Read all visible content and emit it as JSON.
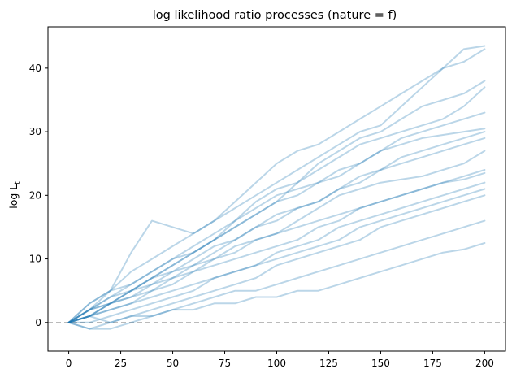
{
  "chart_data": {
    "type": "line",
    "title": "log likelihood ratio processes (nature = f)",
    "xlabel": "",
    "ylabel": "log L",
    "ylabel_subscript": "t",
    "xlim": [
      -10,
      210
    ],
    "ylim": [
      -4.5,
      46.5
    ],
    "xticks": [
      0,
      25,
      50,
      75,
      100,
      125,
      150,
      175,
      200
    ],
    "yticks": [
      0,
      10,
      20,
      30,
      40
    ],
    "grid": false,
    "line_color": "#1f77b4",
    "line_alpha": 0.3,
    "reference_line": {
      "y": 0,
      "style": "dashed",
      "color": "#b0b0b0"
    },
    "series": [
      {
        "x": [
          0,
          10,
          20,
          30,
          40,
          50,
          60,
          70,
          80,
          90,
          100,
          110,
          120,
          130,
          140,
          150,
          160,
          170,
          180,
          190,
          200
        ],
        "values": [
          0,
          3,
          5,
          11,
          16,
          15,
          14,
          16,
          18,
          20,
          22,
          24,
          26,
          28,
          30,
          31,
          34,
          37,
          40,
          43,
          43.5
        ]
      },
      {
        "x": [
          0,
          10,
          20,
          30,
          40,
          50,
          60,
          70,
          80,
          90,
          100,
          110,
          120,
          130,
          140,
          150,
          160,
          170,
          180,
          190,
          200
        ],
        "values": [
          0,
          2,
          5,
          8,
          10,
          12,
          14,
          16,
          19,
          22,
          25,
          27,
          28,
          30,
          32,
          34,
          36,
          38,
          40,
          41,
          43
        ]
      },
      {
        "x": [
          0,
          10,
          20,
          30,
          40,
          50,
          60,
          70,
          80,
          90,
          100,
          110,
          120,
          130,
          140,
          150,
          160,
          170,
          180,
          190,
          200
        ],
        "values": [
          0,
          2,
          4,
          6,
          8,
          10,
          11,
          13,
          16,
          19,
          21,
          22,
          25,
          27,
          29,
          30,
          32,
          34,
          35,
          36,
          38
        ]
      },
      {
        "x": [
          0,
          10,
          20,
          30,
          40,
          50,
          60,
          70,
          80,
          90,
          100,
          110,
          120,
          130,
          140,
          150,
          160,
          170,
          180,
          190,
          200
        ],
        "values": [
          0,
          1,
          3,
          5,
          7,
          9,
          11,
          13,
          15,
          17,
          19,
          22,
          24,
          26,
          28,
          29,
          30,
          31,
          32,
          34,
          37
        ]
      },
      {
        "x": [
          0,
          10,
          20,
          30,
          40,
          50,
          60,
          70,
          80,
          90,
          100,
          110,
          120,
          130,
          140,
          150,
          160,
          170,
          180,
          190,
          200
        ],
        "values": [
          0,
          3,
          5,
          6,
          8,
          10,
          12,
          14,
          16,
          18,
          20,
          21,
          22,
          24,
          25,
          27,
          29,
          30,
          31,
          32,
          33
        ]
      },
      {
        "x": [
          0,
          10,
          20,
          30,
          40,
          50,
          60,
          70,
          80,
          90,
          100,
          110,
          120,
          130,
          140,
          150,
          160,
          170,
          180,
          190,
          200
        ],
        "values": [
          0,
          2,
          3,
          5,
          7,
          9,
          11,
          13,
          15,
          17,
          19,
          20,
          22,
          23,
          25,
          27,
          28,
          29,
          29.5,
          30,
          30.5
        ]
      },
      {
        "x": [
          0,
          10,
          20,
          30,
          40,
          50,
          60,
          70,
          80,
          90,
          100,
          110,
          120,
          130,
          140,
          150,
          160,
          170,
          180,
          190,
          200
        ],
        "values": [
          0,
          1,
          3,
          4,
          6,
          8,
          9,
          11,
          13,
          15,
          16,
          18,
          19,
          21,
          23,
          24,
          26,
          27,
          28,
          29,
          30
        ]
      },
      {
        "x": [
          0,
          10,
          20,
          30,
          40,
          50,
          60,
          70,
          80,
          90,
          100,
          110,
          120,
          130,
          140,
          150,
          160,
          170,
          180,
          190,
          200
        ],
        "values": [
          0,
          2,
          4,
          5,
          7,
          8,
          10,
          12,
          13,
          15,
          17,
          18,
          19,
          21,
          22,
          24,
          25,
          26,
          27,
          28,
          29
        ]
      },
      {
        "x": [
          0,
          10,
          20,
          30,
          40,
          50,
          60,
          70,
          80,
          90,
          100,
          110,
          120,
          130,
          140,
          150,
          160,
          170,
          180,
          190,
          200
        ],
        "values": [
          0,
          1,
          2,
          3,
          5,
          6,
          8,
          10,
          12,
          13,
          14,
          16,
          18,
          20,
          21,
          22,
          22.5,
          23,
          24,
          25,
          27
        ]
      },
      {
        "x": [
          0,
          10,
          20,
          30,
          40,
          50,
          60,
          70,
          80,
          90,
          100,
          110,
          120,
          130,
          140,
          150,
          160,
          170,
          180,
          190,
          200
        ],
        "values": [
          0,
          2,
          3,
          5,
          6,
          7,
          9,
          10,
          11,
          13,
          14,
          15,
          16,
          17,
          18,
          19,
          20,
          21,
          22,
          23,
          24
        ]
      },
      {
        "x": [
          0,
          10,
          20,
          30,
          40,
          50,
          60,
          70,
          80,
          90,
          100,
          110,
          120,
          130,
          140,
          150,
          160,
          170,
          180,
          190,
          200
        ],
        "values": [
          0,
          1,
          3,
          4,
          5,
          7,
          8,
          9,
          10,
          11,
          12,
          13,
          15,
          16,
          18,
          19,
          20,
          21,
          22,
          22.5,
          23.5
        ]
      },
      {
        "x": [
          0,
          10,
          20,
          30,
          40,
          50,
          60,
          70,
          80,
          90,
          100,
          110,
          120,
          130,
          140,
          150,
          160,
          170,
          180,
          190,
          200
        ],
        "values": [
          0,
          0,
          1,
          2,
          3,
          4,
          5,
          7,
          8,
          9,
          11,
          12,
          13,
          15,
          16,
          17,
          18,
          19,
          20,
          21,
          22
        ]
      },
      {
        "x": [
          0,
          10,
          20,
          30,
          40,
          50,
          60,
          70,
          80,
          90,
          100,
          110,
          120,
          130,
          140,
          150,
          160,
          170,
          180,
          190,
          200
        ],
        "values": [
          0,
          1,
          2,
          3,
          4,
          5,
          6,
          7,
          8,
          9,
          10,
          11,
          12,
          13,
          15,
          16,
          17,
          18,
          19,
          20,
          21
        ]
      },
      {
        "x": [
          0,
          10,
          20,
          30,
          40,
          50,
          60,
          70,
          80,
          90,
          100,
          110,
          120,
          130,
          140,
          150,
          160,
          170,
          180,
          190,
          200
        ],
        "values": [
          0,
          -1,
          0,
          1,
          2,
          3,
          4,
          5,
          6,
          7,
          9,
          10,
          11,
          12,
          13,
          15,
          16,
          17,
          18,
          19,
          20
        ]
      },
      {
        "x": [
          0,
          10,
          20,
          30,
          40,
          50,
          60,
          70,
          80,
          90,
          100,
          110,
          120,
          130,
          140,
          150,
          160,
          170,
          180,
          190,
          200
        ],
        "values": [
          0,
          -1,
          -1,
          0,
          1,
          2,
          3,
          4,
          5,
          5,
          6,
          7,
          8,
          9,
          10,
          11,
          12,
          13,
          14,
          15,
          16
        ]
      },
      {
        "x": [
          0,
          10,
          20,
          30,
          40,
          50,
          60,
          70,
          80,
          90,
          100,
          110,
          120,
          130,
          140,
          150,
          160,
          170,
          180,
          190,
          200
        ],
        "values": [
          0,
          1,
          0,
          1,
          1,
          2,
          2,
          3,
          3,
          4,
          4,
          5,
          5,
          6,
          7,
          8,
          9,
          10,
          11,
          11.5,
          12.5
        ]
      }
    ]
  }
}
